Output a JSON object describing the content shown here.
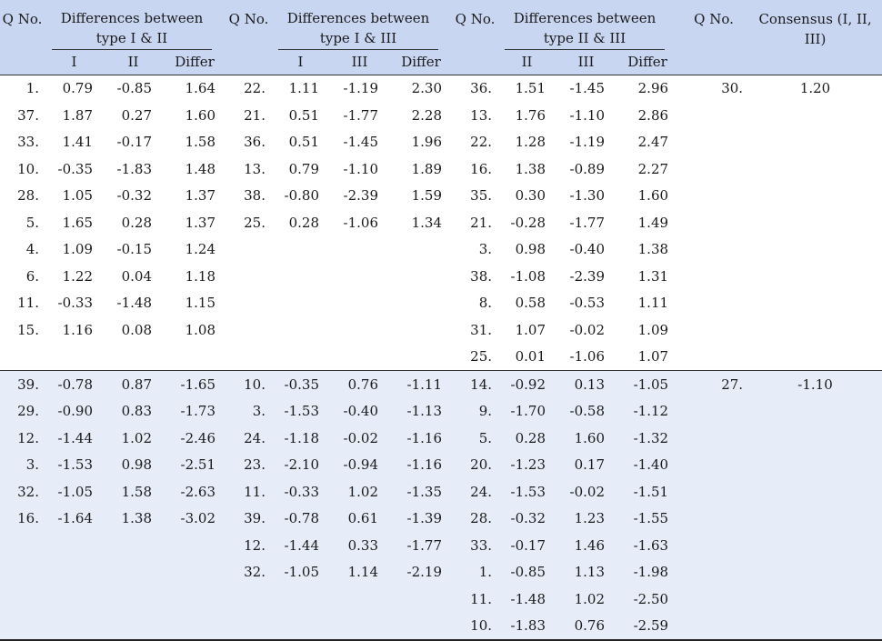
{
  "header": {
    "q_no": "Q No.",
    "group1": "Differences between type I & II",
    "group2": "Differences between type I & III",
    "group3": "Differences between type II & III",
    "consensus": "Consensus (I, II, III)",
    "sub1": [
      "I",
      "II",
      "Differ"
    ],
    "sub2": [
      "I",
      "III",
      "Differ"
    ],
    "sub3": [
      "II",
      "III",
      "Differ"
    ]
  },
  "positive_rows": [
    [
      "1.",
      "0.79",
      "-0.85",
      "1.64",
      "22.",
      "1.11",
      "-1.19",
      "2.30",
      "36.",
      "1.51",
      "-1.45",
      "2.96",
      "30.",
      "1.20"
    ],
    [
      "37.",
      "1.87",
      "0.27",
      "1.60",
      "21.",
      "0.51",
      "-1.77",
      "2.28",
      "13.",
      "1.76",
      "-1.10",
      "2.86",
      "",
      ""
    ],
    [
      "33.",
      "1.41",
      "-0.17",
      "1.58",
      "36.",
      "0.51",
      "-1.45",
      "1.96",
      "22.",
      "1.28",
      "-1.19",
      "2.47",
      "",
      ""
    ],
    [
      "10.",
      "-0.35",
      "-1.83",
      "1.48",
      "13.",
      "0.79",
      "-1.10",
      "1.89",
      "16.",
      "1.38",
      "-0.89",
      "2.27",
      "",
      ""
    ],
    [
      "28.",
      "1.05",
      "-0.32",
      "1.37",
      "38.",
      "-0.80",
      "-2.39",
      "1.59",
      "35.",
      "0.30",
      "-1.30",
      "1.60",
      "",
      ""
    ],
    [
      "5.",
      "1.65",
      "0.28",
      "1.37",
      "25.",
      "0.28",
      "-1.06",
      "1.34",
      "21.",
      "-0.28",
      "-1.77",
      "1.49",
      "",
      ""
    ],
    [
      "4.",
      "1.09",
      "-0.15",
      "1.24",
      "",
      "",
      "",
      "",
      "3.",
      "0.98",
      "-0.40",
      "1.38",
      "",
      ""
    ],
    [
      "6.",
      "1.22",
      "0.04",
      "1.18",
      "",
      "",
      "",
      "",
      "38.",
      "-1.08",
      "-2.39",
      "1.31",
      "",
      ""
    ],
    [
      "11.",
      "-0.33",
      "-1.48",
      "1.15",
      "",
      "",
      "",
      "",
      "8.",
      "0.58",
      "-0.53",
      "1.11",
      "",
      ""
    ],
    [
      "15.",
      "1.16",
      "0.08",
      "1.08",
      "",
      "",
      "",
      "",
      "31.",
      "1.07",
      "-0.02",
      "1.09",
      "",
      ""
    ],
    [
      "",
      "",
      "",
      "",
      "",
      "",
      "",
      "",
      "25.",
      "0.01",
      "-1.06",
      "1.07",
      "",
      ""
    ]
  ],
  "negative_rows": [
    [
      "39.",
      "-0.78",
      "0.87",
      "-1.65",
      "10.",
      "-0.35",
      "0.76",
      "-1.11",
      "14.",
      "-0.92",
      "0.13",
      "-1.05",
      "27.",
      "-1.10"
    ],
    [
      "29.",
      "-0.90",
      "0.83",
      "-1.73",
      "3.",
      "-1.53",
      "-0.40",
      "-1.13",
      "9.",
      "-1.70",
      "-0.58",
      "-1.12",
      "",
      ""
    ],
    [
      "12.",
      "-1.44",
      "1.02",
      "-2.46",
      "24.",
      "-1.18",
      "-0.02",
      "-1.16",
      "5.",
      "0.28",
      "1.60",
      "-1.32",
      "",
      ""
    ],
    [
      "3.",
      "-1.53",
      "0.98",
      "-2.51",
      "23.",
      "-2.10",
      "-0.94",
      "-1.16",
      "20.",
      "-1.23",
      "0.17",
      "-1.40",
      "",
      ""
    ],
    [
      "32.",
      "-1.05",
      "1.58",
      "-2.63",
      "11.",
      "-0.33",
      "1.02",
      "-1.35",
      "24.",
      "-1.53",
      "-0.02",
      "-1.51",
      "",
      ""
    ],
    [
      "16.",
      "-1.64",
      "1.38",
      "-3.02",
      "39.",
      "-0.78",
      "0.61",
      "-1.39",
      "28.",
      "-0.32",
      "1.23",
      "-1.55",
      "",
      ""
    ],
    [
      "",
      "",
      "",
      "",
      "12.",
      "-1.44",
      "0.33",
      "-1.77",
      "33.",
      "-0.17",
      "1.46",
      "-1.63",
      "",
      ""
    ],
    [
      "",
      "",
      "",
      "",
      "32.",
      "-1.05",
      "1.14",
      "-2.19",
      "1.",
      "-0.85",
      "1.13",
      "-1.98",
      "",
      ""
    ],
    [
      "",
      "",
      "",
      "",
      "",
      "",
      "",
      "",
      "11.",
      "-1.48",
      "1.02",
      "-2.50",
      "",
      ""
    ],
    [
      "",
      "",
      "",
      "",
      "",
      "",
      "",
      "",
      "10.",
      "-1.83",
      "0.76",
      "-2.59",
      "",
      ""
    ]
  ]
}
